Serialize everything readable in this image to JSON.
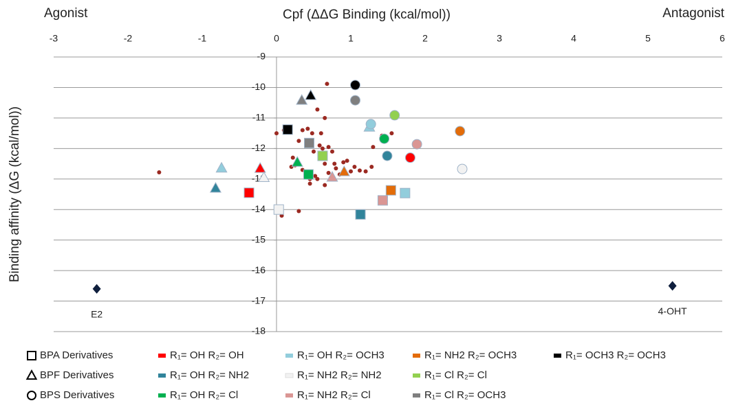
{
  "chart_data": {
    "type": "scatter",
    "title": "Cpf (ΔΔG Binding (kcal/mol))",
    "y_label": "Binding affinity (ΔG (kcal/mol))",
    "left_note": "Agonist",
    "right_note": "Antagonist",
    "xlim": [
      -3,
      6
    ],
    "xticks": [
      -3,
      -2,
      -1,
      0,
      1,
      2,
      3,
      4,
      5,
      6
    ],
    "ylim": [
      -18,
      -9
    ],
    "yticks": [
      -9,
      -10,
      -11,
      -12,
      -13,
      -14,
      -15,
      -16,
      -17,
      -18
    ],
    "grid": true,
    "shape_legend": [
      {
        "name": "BPA Derivatives",
        "shape": "square"
      },
      {
        "name": "BPF Derivatives",
        "shape": "triangle"
      },
      {
        "name": "BPS Derivatives",
        "shape": "circle"
      }
    ],
    "series": [
      {
        "name": "R₁= OH R₂= OH",
        "color": "#ff0000",
        "points": [
          {
            "shape": "triangle",
            "x": -0.22,
            "y": -12.65
          },
          {
            "shape": "square",
            "x": -0.37,
            "y": -13.45
          },
          {
            "shape": "circle",
            "x": 1.8,
            "y": -12.3
          }
        ]
      },
      {
        "name": "R₁= OH R₂= NH2",
        "color": "#31849b",
        "points": [
          {
            "shape": "triangle",
            "x": -0.82,
            "y": -13.3
          },
          {
            "shape": "circle",
            "x": 1.49,
            "y": -12.24
          },
          {
            "shape": "square",
            "x": 1.13,
            "y": -14.16
          }
        ]
      },
      {
        "name": "R₁= OH R₂= Cl",
        "color": "#00b050",
        "points": [
          {
            "shape": "triangle",
            "x": 0.28,
            "y": -12.45
          },
          {
            "shape": "circle",
            "x": 1.45,
            "y": -11.68
          },
          {
            "shape": "square",
            "x": 0.43,
            "y": -12.85
          }
        ]
      },
      {
        "name": "R₁= OH R₂= OCH3",
        "color": "#92cddc",
        "points": [
          {
            "shape": "triangle",
            "x": -0.74,
            "y": -12.64
          },
          {
            "shape": "triangle",
            "x": 1.25,
            "y": -11.3
          },
          {
            "shape": "circle",
            "x": 1.27,
            "y": -11.2
          },
          {
            "shape": "square",
            "x": 1.73,
            "y": -13.46
          }
        ]
      },
      {
        "name": "R₁= NH2 R₂= NH2",
        "color": "#f2f2f2",
        "points": [
          {
            "shape": "triangle",
            "x": -0.17,
            "y": -12.95
          },
          {
            "shape": "circle",
            "x": 2.5,
            "y": -12.67
          },
          {
            "shape": "square",
            "x": 0.03,
            "y": -14.0
          }
        ]
      },
      {
        "name": "R₁= NH2 R₂= Cl",
        "color": "#da9694",
        "points": [
          {
            "shape": "triangle",
            "x": 0.75,
            "y": -12.94
          },
          {
            "shape": "circle",
            "x": 1.89,
            "y": -11.86
          },
          {
            "shape": "square",
            "x": 1.43,
            "y": -13.7
          }
        ]
      },
      {
        "name": "R₁= NH2 R₂= OCH3",
        "color": "#e36c09",
        "points": [
          {
            "shape": "triangle",
            "x": 0.91,
            "y": -12.76
          },
          {
            "shape": "circle",
            "x": 2.47,
            "y": -11.43
          },
          {
            "shape": "square",
            "x": 1.54,
            "y": -13.37
          }
        ]
      },
      {
        "name": "R₁= Cl R₂= Cl",
        "color": "#92d050",
        "points": [
          {
            "shape": "circle",
            "x": 1.59,
            "y": -10.91
          },
          {
            "shape": "square",
            "x": 0.62,
            "y": -12.24
          }
        ]
      },
      {
        "name": "R₁= Cl R₂= OCH3",
        "color": "#7f7f7f",
        "points": [
          {
            "shape": "triangle",
            "x": 0.34,
            "y": -10.42
          },
          {
            "shape": "circle",
            "x": 1.06,
            "y": -10.42
          },
          {
            "shape": "square",
            "x": 0.44,
            "y": -11.82
          }
        ]
      },
      {
        "name": "R₁= OCH3 R₂= OCH3",
        "color": "#000000",
        "points": [
          {
            "shape": "triangle",
            "x": 0.46,
            "y": -10.26
          },
          {
            "shape": "circle",
            "x": 1.06,
            "y": -9.92
          },
          {
            "shape": "square",
            "x": 0.15,
            "y": -11.38
          }
        ]
      }
    ],
    "small_points": {
      "color": "#9b2a22",
      "x": [
        -1.58,
        0,
        0.1,
        0.15,
        0.22,
        0.25,
        0.3,
        0.35,
        0.42,
        0.48,
        0.5,
        0.55,
        0.6,
        0.65,
        0.68,
        0.58,
        0.62,
        0.7,
        0.75,
        0.78,
        0.8,
        0.85,
        0.9,
        0.95,
        0.2,
        0.35,
        0.45,
        0.45,
        0.65,
        0.55,
        0.7,
        1.0,
        1.05,
        1.12,
        1.2,
        1.28,
        1.3,
        1.42,
        1.55,
        1.47,
        0.3,
        0.07,
        0.52,
        0.6,
        0.65
      ],
      "y": [
        -12.78,
        -11.5,
        -11.4,
        -11.45,
        -12.3,
        -12.55,
        -11.75,
        -11.4,
        -11.35,
        -11.5,
        -12.1,
        -10.72,
        -11.5,
        -11.0,
        -9.88,
        -11.9,
        -12.0,
        -11.95,
        -12.1,
        -12.5,
        -12.65,
        -12.85,
        -12.45,
        -12.4,
        -12.6,
        -12.7,
        -13.0,
        -13.15,
        -13.2,
        -13.0,
        -12.8,
        -12.75,
        -12.6,
        -12.72,
        -12.75,
        -12.6,
        -11.95,
        -11.58,
        -11.5,
        -13.6,
        -14.05,
        -14.2,
        -12.9,
        -12.3,
        -12.5
      ]
    },
    "reference_points": {
      "color": "#0f1f3d",
      "points": [
        {
          "label": "E2",
          "x": -2.42,
          "y": -16.6
        },
        {
          "label": "4-OHT",
          "x": 5.33,
          "y": -16.5
        }
      ]
    }
  }
}
